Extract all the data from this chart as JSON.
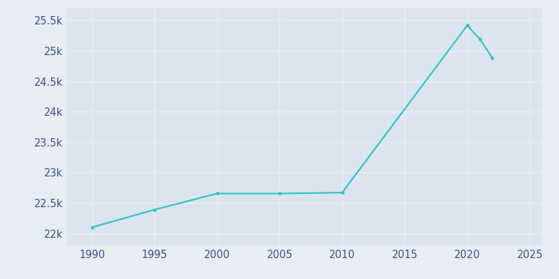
{
  "years": [
    1990,
    1995,
    2000,
    2005,
    2010,
    2020,
    2021,
    2022
  ],
  "population": [
    22100,
    22390,
    22655,
    22655,
    22670,
    25420,
    25200,
    24890
  ],
  "line_color": "#2ec4c4",
  "marker_color": "#2ec4c4",
  "fig_bg_color": "#e8edf4",
  "plot_bg_color": "#dce5ef",
  "grid_color": "#eaf0f8",
  "tick_label_color": "#3b4f82",
  "xlim": [
    1988,
    2026
  ],
  "ylim": [
    21800,
    25700
  ],
  "xticks": [
    1990,
    1995,
    2000,
    2005,
    2010,
    2015,
    2020,
    2025
  ],
  "yticks": [
    22000,
    22500,
    23000,
    23500,
    24000,
    24500,
    25000,
    25500
  ],
  "ytick_labels": [
    "22k",
    "22.5k",
    "23k",
    "23.5k",
    "24k",
    "24.5k",
    "25k",
    "25.5k"
  ]
}
